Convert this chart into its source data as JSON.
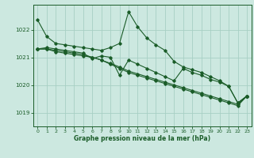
{
  "bg_color": "#cce8e0",
  "grid_color": "#a8cfc4",
  "line_color": "#1a5c28",
  "text_color": "#1a5c28",
  "xlabel": "Graphe pression niveau de la mer (hPa)",
  "xlim": [
    -0.5,
    23.5
  ],
  "ylim": [
    1018.5,
    1022.9
  ],
  "yticks": [
    1019,
    1020,
    1021,
    1022
  ],
  "xticks": [
    0,
    1,
    2,
    3,
    4,
    5,
    6,
    7,
    8,
    9,
    10,
    11,
    12,
    13,
    14,
    15,
    16,
    17,
    18,
    19,
    20,
    21,
    22,
    23
  ],
  "series": [
    [
      1022.35,
      1021.75,
      1021.5,
      1021.45,
      1021.4,
      1021.35,
      1021.3,
      1021.25,
      1021.35,
      1021.5,
      1022.65,
      1022.1,
      1021.7,
      1021.45,
      1021.25,
      1020.85,
      1020.65,
      1020.55,
      1020.45,
      1020.3,
      1020.15,
      1019.95,
      1019.35,
      1019.6
    ],
    [
      1021.3,
      1021.35,
      1021.3,
      1021.25,
      1021.2,
      1021.15,
      1020.95,
      1021.05,
      1021.0,
      1020.35,
      1020.9,
      1020.75,
      1020.6,
      1020.45,
      1020.3,
      1020.15,
      1020.6,
      1020.45,
      1020.35,
      1020.2,
      1020.1,
      1019.95,
      1019.35,
      1019.6
    ],
    [
      1021.3,
      1021.3,
      1021.25,
      1021.2,
      1021.15,
      1021.1,
      1021.0,
      1020.9,
      1020.75,
      1020.6,
      1020.45,
      1020.35,
      1020.25,
      1020.15,
      1020.05,
      1019.95,
      1019.85,
      1019.75,
      1019.65,
      1019.55,
      1019.45,
      1019.35,
      1019.25,
      1019.6
    ],
    [
      1021.3,
      1021.3,
      1021.2,
      1021.15,
      1021.1,
      1021.05,
      1021.0,
      1020.9,
      1020.78,
      1020.65,
      1020.5,
      1020.4,
      1020.3,
      1020.2,
      1020.1,
      1020.0,
      1019.9,
      1019.8,
      1019.7,
      1019.6,
      1019.5,
      1019.4,
      1019.3,
      1019.6
    ]
  ]
}
